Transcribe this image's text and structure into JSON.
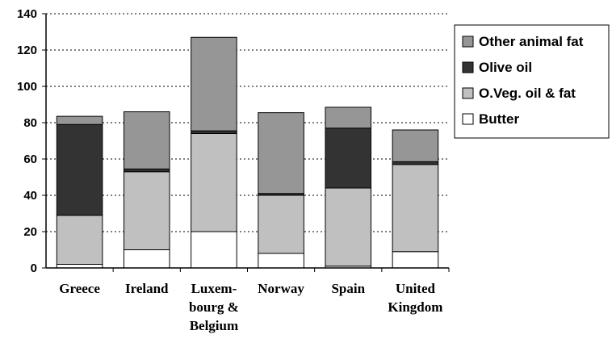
{
  "chart_data": {
    "type": "bar",
    "stacked": true,
    "categories": [
      [
        "Greece"
      ],
      [
        "Ireland"
      ],
      [
        "Luxem-",
        "bourg &",
        "Belgium"
      ],
      [
        "Norway"
      ],
      [
        "Spain"
      ],
      [
        "United",
        "Kingdom"
      ]
    ],
    "series": [
      {
        "name": "Butter",
        "color": "#ffffff",
        "values": [
          2,
          10,
          20,
          8,
          1,
          9
        ]
      },
      {
        "name": "O.Veg. oil & fat",
        "color": "#c0c0c0",
        "values": [
          27,
          43,
          54,
          32,
          43,
          48
        ]
      },
      {
        "name": "Olive oil",
        "color": "#333333",
        "values": [
          50,
          1.5,
          1.5,
          1,
          33,
          1.5
        ]
      },
      {
        "name": "Other animal fat",
        "color": "#969696",
        "values": [
          4.5,
          31.5,
          51.5,
          44.5,
          11.5,
          17.5
        ]
      }
    ],
    "legend_order": [
      "Other animal fat",
      "Olive oil",
      "O.Veg. oil & fat",
      "Butter"
    ],
    "legend_position": "right",
    "ylim": [
      0,
      140
    ],
    "yticks": [
      0,
      20,
      40,
      60,
      80,
      100,
      120,
      140
    ],
    "grid": "horizontal-dotted",
    "title": "",
    "xlabel": "",
    "ylabel": ""
  }
}
